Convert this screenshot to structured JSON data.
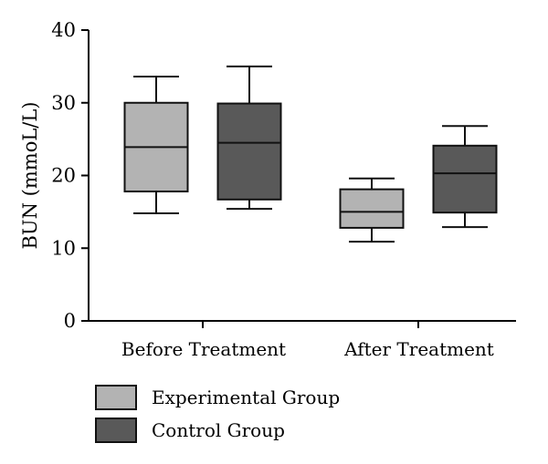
{
  "chart_data": {
    "type": "box",
    "ylabel": "BUN (mmoL/L)",
    "ylim": [
      0,
      40
    ],
    "yticks": [
      0,
      10,
      20,
      30,
      40
    ],
    "categories": [
      "Before Treatment",
      "After Treatment"
    ],
    "series": [
      {
        "name": "Experimental Group",
        "color": "#b3b3b3",
        "boxes": [
          {
            "min": 14.8,
            "q1": 17.8,
            "median": 23.9,
            "q3": 30.0,
            "max": 33.6
          },
          {
            "min": 10.9,
            "q1": 12.8,
            "median": 15.0,
            "q3": 18.1,
            "max": 19.6
          }
        ]
      },
      {
        "name": "Control Group",
        "color": "#595959",
        "boxes": [
          {
            "min": 15.4,
            "q1": 16.7,
            "median": 24.5,
            "q3": 29.9,
            "max": 35.0
          },
          {
            "min": 12.9,
            "q1": 14.9,
            "median": 20.3,
            "q3": 24.1,
            "max": 26.8
          }
        ]
      }
    ],
    "legend_position": "bottom-left"
  }
}
